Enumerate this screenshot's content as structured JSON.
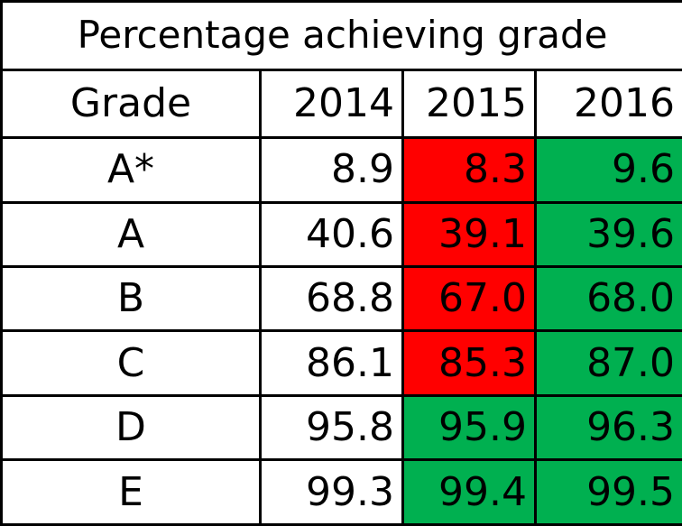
{
  "table": {
    "title": "Percentage achieving grade",
    "header": {
      "grade_label": "Grade",
      "years": [
        "2014",
        "2015",
        "2016"
      ]
    },
    "rows": [
      {
        "grade": "A*",
        "values": [
          "8.9",
          "8.3",
          "9.6"
        ],
        "highlight": [
          null,
          "decrease",
          "increase"
        ]
      },
      {
        "grade": "A",
        "values": [
          "40.6",
          "39.1",
          "39.6"
        ],
        "highlight": [
          null,
          "decrease",
          "increase"
        ]
      },
      {
        "grade": "B",
        "values": [
          "68.8",
          "67.0",
          "68.0"
        ],
        "highlight": [
          null,
          "decrease",
          "increase"
        ]
      },
      {
        "grade": "C",
        "values": [
          "86.1",
          "85.3",
          "87.0"
        ],
        "highlight": [
          null,
          "decrease",
          "increase"
        ]
      },
      {
        "grade": "D",
        "values": [
          "95.8",
          "95.9",
          "96.3"
        ],
        "highlight": [
          null,
          "increase",
          "increase"
        ]
      },
      {
        "grade": "E",
        "values": [
          "99.3",
          "99.4",
          "99.5"
        ],
        "highlight": [
          null,
          "increase",
          "increase"
        ]
      }
    ],
    "colors": {
      "increase": "#00b050",
      "decrease": "#ff0000",
      "border": "#000000",
      "background": "#ffffff"
    }
  },
  "chart_data": {
    "type": "table",
    "title": "Percentage achieving grade",
    "columns": [
      "Grade",
      "2014",
      "2015",
      "2016"
    ],
    "categories": [
      "A*",
      "A",
      "B",
      "C",
      "D",
      "E"
    ],
    "series": [
      {
        "name": "2014",
        "values": [
          8.9,
          40.6,
          68.8,
          86.1,
          95.8,
          99.3
        ]
      },
      {
        "name": "2015",
        "values": [
          8.3,
          39.1,
          67.0,
          85.3,
          95.9,
          99.4
        ]
      },
      {
        "name": "2016",
        "values": [
          9.6,
          39.6,
          68.0,
          87.0,
          96.3,
          99.5
        ]
      }
    ]
  }
}
